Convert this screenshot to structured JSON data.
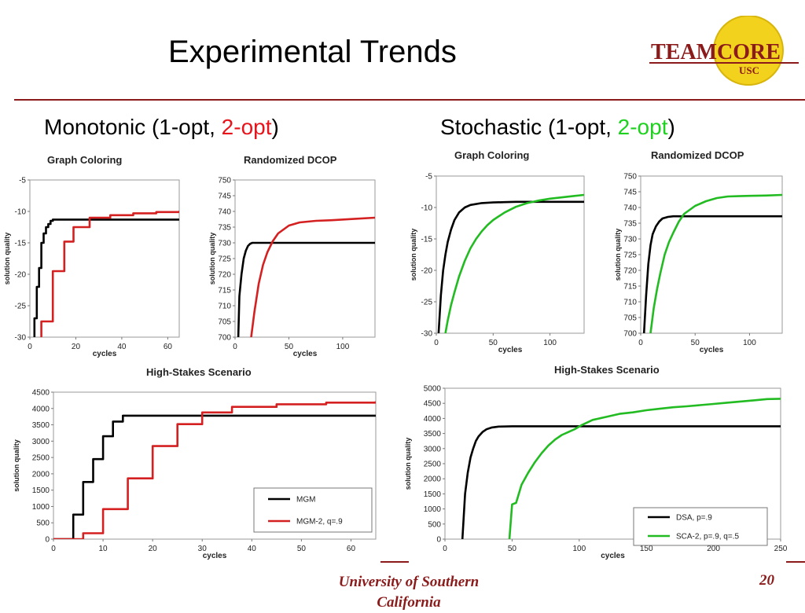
{
  "slide": {
    "title": "Experimental Trends",
    "left_heading": {
      "prefix": "Monotonic (1-opt, ",
      "highlight": "2-opt",
      "suffix": ")"
    },
    "right_heading": {
      "prefix": "Stochastic (1-opt, ",
      "highlight": "2-opt",
      "suffix": ")"
    },
    "footer": "University of Southern California",
    "page_number": "20",
    "logo": {
      "text": "TEAMCORE",
      "subtext": "USC"
    },
    "colors": {
      "rule": "#8b1a1a",
      "highlight_red": "#e8141b",
      "highlight_green": "#1fd11f",
      "logo_gold": "#f2d21c"
    }
  },
  "chart_data": [
    {
      "id": "mono-graph-coloring",
      "type": "line",
      "title": "Graph Coloring",
      "xlabel": "cycles",
      "ylabel": "solution quality",
      "xlim": [
        0,
        65
      ],
      "ylim": [
        -30,
        -5
      ],
      "xticks": [
        0,
        20,
        40,
        60
      ],
      "yticks": [
        -30,
        -25,
        -20,
        -15,
        -10,
        -5
      ],
      "grid": false,
      "series": [
        {
          "color": "#000000",
          "step": true,
          "x": [
            0,
            2,
            3,
            4,
            5,
            6,
            7,
            8,
            9,
            10,
            65
          ],
          "y": [
            -31,
            -27,
            -22,
            -19,
            -15,
            -13.5,
            -12.5,
            -12,
            -11.5,
            -11.3,
            -11.3
          ]
        },
        {
          "color": "#d42020",
          "step": true,
          "x": [
            0,
            4,
            5,
            9,
            10,
            14,
            15,
            18,
            19,
            25,
            26,
            35,
            45,
            55,
            65
          ],
          "y": [
            -31,
            -31,
            -27.5,
            -27.5,
            -19.5,
            -19.5,
            -14.8,
            -14.8,
            -12.5,
            -12.5,
            -11,
            -10.6,
            -10.3,
            -10.1,
            -9.9
          ]
        }
      ]
    },
    {
      "id": "mono-randomized-dcop",
      "type": "line",
      "title": "Randomized DCOP",
      "xlabel": "cycles",
      "ylabel": "solution quality",
      "xlim": [
        0,
        130
      ],
      "ylim": [
        700,
        750
      ],
      "xticks": [
        0,
        50,
        100
      ],
      "yticks": [
        700,
        705,
        710,
        715,
        720,
        725,
        730,
        735,
        740,
        745,
        750
      ],
      "grid": false,
      "series": [
        {
          "color": "#000000",
          "step": false,
          "x": [
            3,
            4,
            6,
            8,
            10,
            12,
            14,
            16,
            130
          ],
          "y": [
            700,
            713,
            720,
            725,
            727.5,
            729,
            729.7,
            730,
            730
          ]
        },
        {
          "color": "#d42020",
          "step": false,
          "x": [
            15,
            18,
            22,
            26,
            30,
            35,
            40,
            50,
            60,
            75,
            90,
            110,
            130
          ],
          "y": [
            700,
            708,
            717,
            723,
            727,
            730.5,
            733,
            735.5,
            736.5,
            737,
            737.2,
            737.6,
            738
          ]
        }
      ]
    },
    {
      "id": "mono-high-stakes",
      "type": "line",
      "title": "High-Stakes Scenario",
      "xlabel": "cycles",
      "ylabel": "solution quality",
      "xlim": [
        0,
        65
      ],
      "ylim": [
        0,
        4500
      ],
      "xticks": [
        0,
        10,
        20,
        30,
        40,
        50,
        60
      ],
      "yticks": [
        0,
        500,
        1000,
        1500,
        2000,
        2500,
        3000,
        3500,
        4000,
        4500
      ],
      "grid": false,
      "legend": "bottom-right",
      "series": [
        {
          "name": "MGM",
          "color": "#000000",
          "step": true,
          "x": [
            0,
            3,
            4,
            5,
            6,
            7,
            8,
            9,
            10,
            11,
            12,
            13,
            14,
            65
          ],
          "y": [
            0,
            0,
            750,
            750,
            1750,
            1750,
            2450,
            2450,
            3150,
            3150,
            3600,
            3600,
            3780,
            3780
          ]
        },
        {
          "name": "MGM-2, q=.9",
          "color": "#d42020",
          "step": true,
          "x": [
            0,
            5,
            6,
            9,
            10,
            14,
            15,
            19,
            20,
            24,
            25,
            29,
            30,
            35,
            36,
            45,
            55,
            65
          ],
          "y": [
            0,
            0,
            180,
            180,
            920,
            920,
            1860,
            1860,
            2850,
            2850,
            3520,
            3520,
            3880,
            3880,
            4050,
            4130,
            4180,
            4220
          ]
        }
      ]
    },
    {
      "id": "stoch-graph-coloring",
      "type": "line",
      "title": "Graph Coloring",
      "xlabel": "cycles",
      "ylabel": "solution quality",
      "xlim": [
        0,
        130
      ],
      "ylim": [
        -30,
        -5
      ],
      "xticks": [
        0,
        50,
        100
      ],
      "yticks": [
        -30,
        -25,
        -20,
        -15,
        -10,
        -5
      ],
      "grid": false,
      "series": [
        {
          "color": "#000000",
          "step": false,
          "x": [
            2,
            4,
            6,
            8,
            10,
            13,
            16,
            20,
            25,
            30,
            40,
            50,
            60,
            70,
            80,
            90,
            130
          ],
          "y": [
            -30,
            -24,
            -20,
            -17.5,
            -15.5,
            -13.5,
            -12,
            -10.8,
            -10,
            -9.6,
            -9.3,
            -9.2,
            -9.15,
            -9.1,
            -9.1,
            -9.1,
            -9.1
          ]
        },
        {
          "color": "#22bb22",
          "step": false,
          "x": [
            8,
            10,
            13,
            16,
            20,
            25,
            30,
            35,
            40,
            45,
            50,
            60,
            70,
            80,
            90,
            100,
            110,
            120,
            130
          ],
          "y": [
            -30,
            -28,
            -25.5,
            -23.5,
            -21,
            -18.5,
            -16.5,
            -15,
            -13.8,
            -12.8,
            -12,
            -10.8,
            -9.9,
            -9.3,
            -8.9,
            -8.6,
            -8.4,
            -8.2,
            -8
          ]
        }
      ]
    },
    {
      "id": "stoch-randomized-dcop",
      "type": "line",
      "title": "Randomized DCOP",
      "xlabel": "cycles",
      "ylabel": "solution quality",
      "xlim": [
        0,
        130
      ],
      "ylim": [
        700,
        750
      ],
      "xticks": [
        0,
        50,
        100
      ],
      "yticks": [
        700,
        705,
        710,
        715,
        720,
        725,
        730,
        735,
        740,
        745,
        750
      ],
      "grid": false,
      "series": [
        {
          "color": "#000000",
          "step": false,
          "x": [
            3,
            5,
            7,
            9,
            11,
            14,
            17,
            20,
            25,
            30,
            130
          ],
          "y": [
            700,
            712,
            722,
            728,
            731.5,
            734,
            735.5,
            736.5,
            737,
            737.2,
            737.2
          ]
        },
        {
          "color": "#22bb22",
          "step": false,
          "x": [
            9,
            12,
            15,
            18,
            22,
            26,
            30,
            35,
            40,
            50,
            60,
            70,
            80,
            90,
            100,
            115,
            130
          ],
          "y": [
            700,
            708,
            714,
            719,
            725,
            729,
            732,
            735.5,
            738,
            740.5,
            742,
            743,
            743.5,
            743.6,
            743.7,
            743.8,
            744
          ]
        }
      ]
    },
    {
      "id": "stoch-high-stakes",
      "type": "line",
      "title": "High-Stakes Scenario",
      "xlabel": "cycles",
      "ylabel": "solution quality",
      "xlim": [
        0,
        250
      ],
      "ylim": [
        0,
        5000
      ],
      "xticks": [
        0,
        50,
        100,
        150,
        200,
        250
      ],
      "yticks": [
        0,
        500,
        1000,
        1500,
        2000,
        2500,
        3000,
        3500,
        4000,
        4500,
        5000
      ],
      "grid": false,
      "legend": "bottom-right",
      "series": [
        {
          "name": "DSA, p=.9",
          "color": "#000000",
          "step": false,
          "x": [
            13,
            15,
            17,
            19,
            21,
            23,
            25,
            28,
            31,
            35,
            40,
            50,
            60,
            100,
            150,
            200,
            250
          ],
          "y": [
            0,
            1500,
            2200,
            2700,
            3000,
            3250,
            3400,
            3550,
            3640,
            3700,
            3730,
            3740,
            3740,
            3740,
            3740,
            3740,
            3740
          ]
        },
        {
          "name": "SCA-2, p=.9, q=.5",
          "color": "#22bb22",
          "step": false,
          "x": [
            48,
            50,
            53,
            57,
            62,
            67,
            72,
            77,
            82,
            87,
            92,
            97,
            102,
            110,
            120,
            130,
            140,
            150,
            160,
            170,
            180,
            190,
            200,
            210,
            220,
            230,
            240,
            250
          ],
          "y": [
            0,
            1150,
            1200,
            1800,
            2200,
            2550,
            2850,
            3100,
            3300,
            3450,
            3550,
            3650,
            3780,
            3950,
            4050,
            4150,
            4200,
            4270,
            4320,
            4370,
            4400,
            4440,
            4480,
            4520,
            4560,
            4600,
            4640,
            4650
          ]
        }
      ]
    }
  ]
}
